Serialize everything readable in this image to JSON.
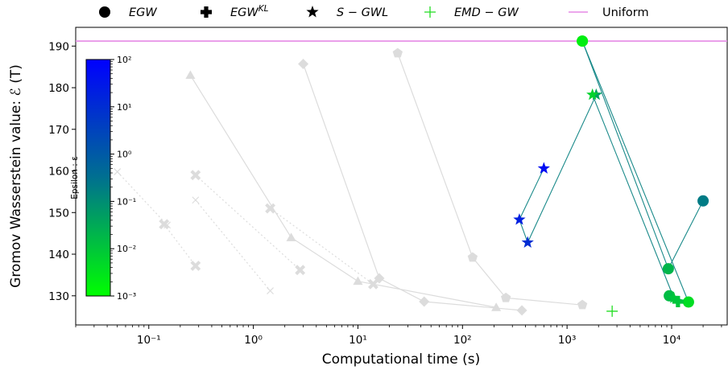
{
  "chart_data": {
    "type": "scatter",
    "xlabel": "Computational time (s)",
    "ylabel": "Gromov Wasserstein value: ℰ (T)",
    "xscale": "log",
    "xlim": [
      0.02,
      34000
    ],
    "ylim": [
      123,
      194.5
    ],
    "x_ticks": [
      {
        "value": 0.1,
        "label": "10⁻¹"
      },
      {
        "value": 1,
        "label": "10⁰"
      },
      {
        "value": 10,
        "label": "10¹"
      },
      {
        "value": 100,
        "label": "10²"
      },
      {
        "value": 1000,
        "label": "10³"
      },
      {
        "value": 10000,
        "label": "10⁴"
      }
    ],
    "y_ticks": [
      130,
      140,
      150,
      160,
      170,
      180,
      190
    ],
    "grid": false,
    "legend": {
      "placement": "top-outside",
      "entries": [
        {
          "marker": "circle",
          "label": "EGW",
          "sup": ""
        },
        {
          "marker": "plus-bold",
          "label": "EGW",
          "sup": "KL"
        },
        {
          "marker": "star",
          "label": "S − GWL",
          "sup": ""
        },
        {
          "marker": "plus-thin",
          "label": "EMD − GW",
          "sup": "",
          "color": "#22dd22"
        },
        {
          "marker": "line",
          "label": "Uniform",
          "sup": "",
          "color": "#e58ae5",
          "plain": true
        }
      ]
    },
    "uniform_value": 191.2,
    "colorbar": {
      "label": "Epsilon : ε",
      "scale": "log",
      "range": [
        0.001,
        100
      ],
      "ticks": [
        {
          "value": 100,
          "label": "10²"
        },
        {
          "value": 10,
          "label": "10¹"
        },
        {
          "value": 1,
          "label": "10⁰"
        },
        {
          "value": 0.1,
          "label": "10⁻¹"
        },
        {
          "value": 0.01,
          "label": "10⁻²"
        },
        {
          "value": 0.001,
          "label": "10⁻³"
        }
      ],
      "color_low": "#00ff00",
      "color_mid": "#007090",
      "color_high": "#0000ff"
    },
    "series": [
      {
        "marker": "circle",
        "connected": true,
        "line_color": "#1a8a8a",
        "points": [
          {
            "x": 1400,
            "y": 191.2,
            "eps": 0.002
          },
          {
            "x": 9300,
            "y": 136.5,
            "eps": 0.02
          },
          {
            "x": 20000,
            "y": 152.8,
            "eps": 0.2
          }
        ]
      },
      {
        "marker": "circle",
        "connected": true,
        "line_color": "#1a8a8a",
        "points": [
          {
            "x": 1400,
            "y": 191.2,
            "eps": 0.002
          },
          {
            "x": 14500,
            "y": 128.5,
            "eps": 0.004
          },
          {
            "x": 9500,
            "y": 130.0,
            "eps": 0.015
          }
        ]
      },
      {
        "marker": "plus-bold",
        "connected": false,
        "line_color": "",
        "points": [
          {
            "x": 11500,
            "y": 128.6,
            "eps": 0.01
          }
        ]
      },
      {
        "marker": "star",
        "connected": true,
        "line_color": "#1a8a8a",
        "points": [
          {
            "x": 1900,
            "y": 178.3,
            "eps": 0.05
          },
          {
            "x": 420,
            "y": 142.8,
            "eps": 10
          },
          {
            "x": 350,
            "y": 148.3,
            "eps": 20
          },
          {
            "x": 600,
            "y": 160.6,
            "eps": 50
          }
        ]
      },
      {
        "marker": "star",
        "connected": true,
        "line_color": "#1a8a8a",
        "points": [
          {
            "x": 1750,
            "y": 178.3,
            "eps": 0.006
          },
          {
            "x": 10500,
            "y": 129.5,
            "eps": 0.01
          }
        ]
      },
      {
        "marker": "plus-thin",
        "connected": false,
        "line_color": "",
        "points": [
          {
            "x": 2700,
            "y": 126.3,
            "color": "#22dd22"
          }
        ]
      }
    ],
    "grey_series": [
      {
        "marker": "triangle",
        "line_style": "solid",
        "points": [
          {
            "x": 0.25,
            "y": 183.0
          },
          {
            "x": 2.3,
            "y": 144.0
          },
          {
            "x": 10,
            "y": 133.5
          },
          {
            "x": 210,
            "y": 127.2
          }
        ]
      },
      {
        "marker": "diamond",
        "line_style": "solid",
        "points": [
          {
            "x": 3.0,
            "y": 185.7
          },
          {
            "x": 16,
            "y": 134.2
          },
          {
            "x": 43,
            "y": 128.6
          },
          {
            "x": 370,
            "y": 126.5
          }
        ]
      },
      {
        "marker": "pentagon",
        "line_style": "solid",
        "points": [
          {
            "x": 24,
            "y": 188.3
          },
          {
            "x": 125,
            "y": 139.2
          },
          {
            "x": 260,
            "y": 129.5
          },
          {
            "x": 1400,
            "y": 127.8
          }
        ]
      },
      {
        "marker": "x-bold",
        "line_style": "dotted",
        "points": [
          {
            "x": 0.28,
            "y": 159.0
          },
          {
            "x": 2.8,
            "y": 136.2
          }
        ]
      },
      {
        "marker": "x-bold",
        "line_style": "dotted",
        "points": [
          {
            "x": 0.14,
            "y": 147.2
          },
          {
            "x": 0.28,
            "y": 137.2
          }
        ]
      },
      {
        "marker": "x-bold",
        "line_style": "dotted",
        "points": [
          {
            "x": 1.45,
            "y": 151.0
          },
          {
            "x": 14,
            "y": 132.8
          }
        ]
      },
      {
        "marker": "x-thin",
        "line_style": "dotted",
        "points": [
          {
            "x": 0.05,
            "y": 159.8
          },
          {
            "x": 0.15,
            "y": 147.0
          }
        ]
      },
      {
        "marker": "x-thin",
        "line_style": "dotted",
        "points": [
          {
            "x": 0.28,
            "y": 153.0
          },
          {
            "x": 1.45,
            "y": 131.2
          }
        ]
      }
    ]
  }
}
